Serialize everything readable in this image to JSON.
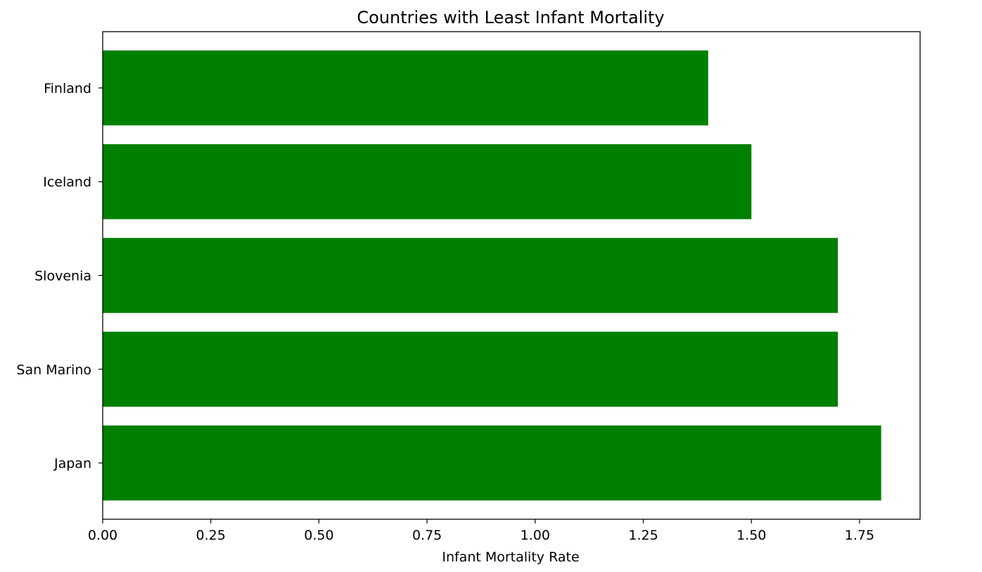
{
  "chart_data": {
    "type": "bar",
    "orientation": "horizontal",
    "title": "Countries with Least Infant Mortality",
    "xlabel": "Infant Mortality Rate",
    "ylabel": "",
    "categories": [
      "Japan",
      "San Marino",
      "Slovenia",
      "Iceland",
      "Finland"
    ],
    "values": [
      1.8,
      1.7,
      1.7,
      1.5,
      1.4
    ],
    "xlim": [
      0,
      1.89
    ],
    "xticks": [
      0.0,
      0.25,
      0.5,
      0.75,
      1.0,
      1.25,
      1.5,
      1.75
    ],
    "xtick_labels": [
      "0.00",
      "0.25",
      "0.50",
      "0.75",
      "1.00",
      "1.25",
      "1.50",
      "1.75"
    ],
    "bar_color": "#008000",
    "grid": false,
    "legend": "none"
  }
}
